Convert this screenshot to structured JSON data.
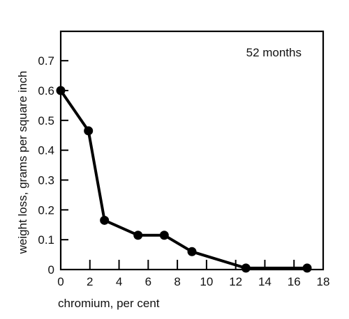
{
  "chart_data": {
    "type": "line",
    "annotation": "52 months",
    "xlabel": "chromium, per cent",
    "ylabel": "weight loss, grams per square inch",
    "xlim": [
      0,
      18
    ],
    "ylim": [
      0,
      0.78
    ],
    "x_ticks": [
      0,
      2,
      4,
      6,
      8,
      10,
      12,
      14,
      16,
      18
    ],
    "x_tick_labels": [
      "0",
      "2",
      "4",
      "6",
      "8",
      "10",
      "12",
      "14",
      "16",
      "18"
    ],
    "y_ticks": [
      0,
      0.1,
      0.2,
      0.3,
      0.4,
      0.5,
      0.6,
      0.7
    ],
    "y_tick_labels": [
      "0",
      "0.1",
      "0.2",
      "0.3",
      "0.4",
      "0.5",
      "0.6",
      "0.7"
    ],
    "grid": false,
    "series": [
      {
        "points": [
          {
            "x": 0,
            "y": 0.6
          },
          {
            "x": 1.9,
            "y": 0.465
          },
          {
            "x": 3.0,
            "y": 0.165
          },
          {
            "x": 5.3,
            "y": 0.115
          },
          {
            "x": 7.1,
            "y": 0.115
          },
          {
            "x": 9.0,
            "y": 0.06
          },
          {
            "x": 12.7,
            "y": 0.005
          },
          {
            "x": 16.9,
            "y": 0.005
          }
        ]
      }
    ],
    "colors": {
      "line": "#000000",
      "marker": "#000000",
      "axes": "#000000"
    }
  }
}
